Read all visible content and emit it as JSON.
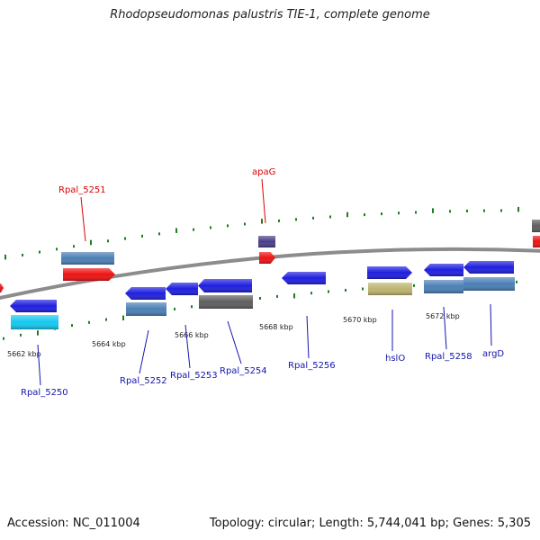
{
  "title": "Rhodopseudomonas palustris TIE-1, complete genome",
  "accession_text": "Accession: NC_011004",
  "summary_text": "Topology: circular; Length: 5,744,041 bp; Genes: 5,305",
  "colors": {
    "backbone": "#8c8c8c",
    "tick": "#1e7d1e",
    "label_highlight": "#dd0000",
    "label_normal": "#1515b0",
    "gene_blue": "#1e1ee0",
    "gene_steel": "#4a7fb5",
    "gene_red": "#ee1111",
    "gene_cyan": "#14c8f0",
    "gene_gray": "#5e5e5e",
    "gene_khaki": "#bdb36f",
    "gene_navy": "#4a3f88"
  },
  "ruler_labels": [
    "5662 kbp",
    "5664 kbp",
    "5666 kbp",
    "5668 kbp",
    "5670 kbp",
    "5672 kbp"
  ],
  "gene_labels": [
    {
      "id": "rpal-5251",
      "text": "Rpal_5251",
      "highlight": true
    },
    {
      "id": "apag",
      "text": "apaG",
      "highlight": true
    },
    {
      "id": "rpal-5250",
      "text": "Rpal_5250",
      "highlight": false
    },
    {
      "id": "rpal-5252",
      "text": "Rpal_5252",
      "highlight": false
    },
    {
      "id": "rpal-5253",
      "text": "Rpal_5253",
      "highlight": false
    },
    {
      "id": "rpal-5254",
      "text": "Rpal_5254",
      "highlight": false
    },
    {
      "id": "rpal-5256",
      "text": "Rpal_5256",
      "highlight": false
    },
    {
      "id": "hslo",
      "text": "hslO",
      "highlight": false
    },
    {
      "id": "rpal-5258",
      "text": "Rpal_5258",
      "highlight": false
    },
    {
      "id": "argd",
      "text": "argD",
      "highlight": false
    }
  ]
}
